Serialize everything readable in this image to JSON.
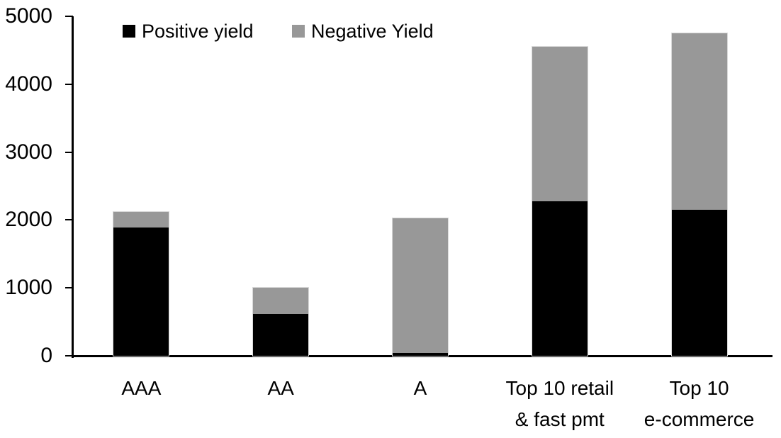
{
  "chart_data": {
    "type": "bar",
    "stacked": true,
    "title": "",
    "xlabel": "",
    "ylabel": "",
    "categories": [
      "AAA",
      "AA",
      "A",
      "Top 10 retail\n& fast pmt",
      "Top 10\ne-commerce"
    ],
    "series": [
      {
        "name": "Positive yield",
        "color": "#000000",
        "values": [
          1890,
          620,
          40,
          2280,
          2150
        ]
      },
      {
        "name": "Negative Yield",
        "color": "#989898",
        "values": [
          230,
          380,
          1990,
          2270,
          2600
        ]
      }
    ],
    "totals": [
      2120,
      1000,
      2030,
      4550,
      4750
    ],
    "ylim": [
      0,
      5000
    ],
    "yticks": [
      0,
      1000,
      2000,
      3000,
      4000,
      5000
    ],
    "grid": false,
    "legend_position": "top"
  },
  "colors": {
    "positive": "#000000",
    "negative": "#989898",
    "axis": "#000000",
    "bar_border": "#d9d9d9",
    "background": "#ffffff"
  }
}
